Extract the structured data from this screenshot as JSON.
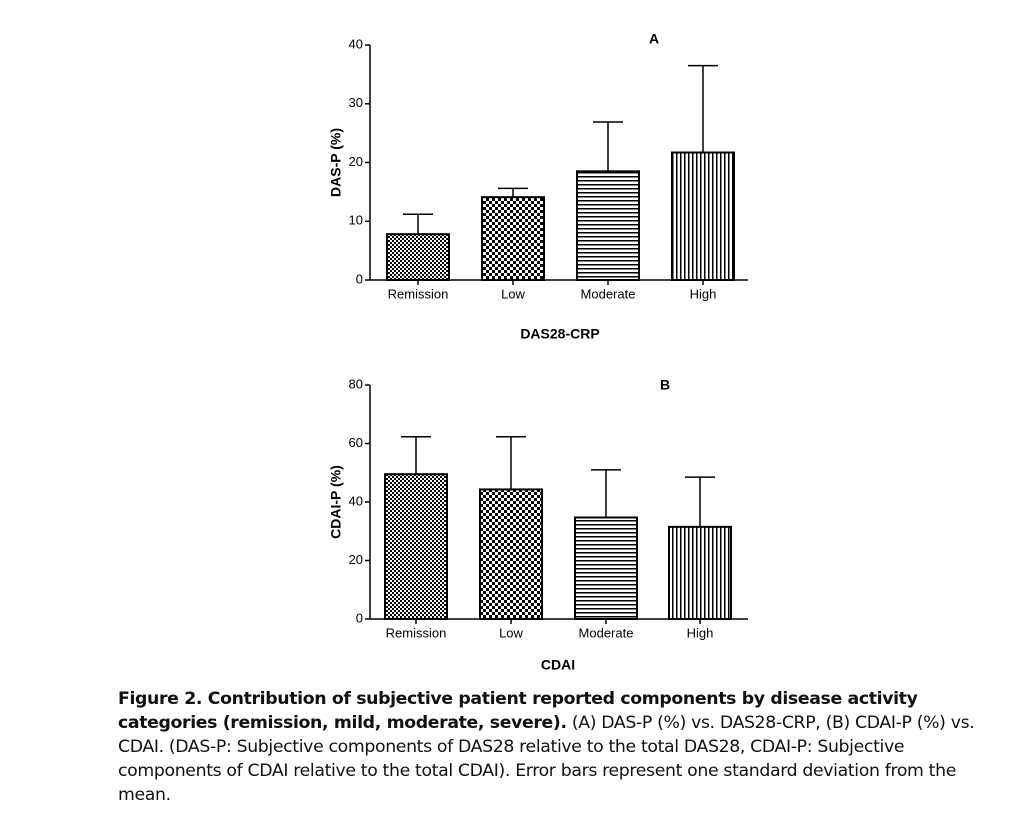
{
  "chart_data": [
    {
      "type": "bar",
      "panel": "A",
      "x_label": "DAS28-CRP",
      "y_label": "DAS-P (%)",
      "categories": [
        "Remission",
        "Low",
        "Moderate",
        "High"
      ],
      "values": [
        7.8,
        14.1,
        18.5,
        21.7
      ],
      "errors": [
        3.4,
        1.5,
        8.4,
        14.8
      ],
      "color": "#000000",
      "ylim": [
        0,
        40
      ],
      "yticks": [
        0,
        10,
        20,
        30,
        40
      ]
    },
    {
      "type": "bar",
      "panel": "B",
      "x_label": "CDAI",
      "y_label": "CDAI-P (%)",
      "categories": [
        "Remission",
        "Low",
        "Moderate",
        "High"
      ],
      "values": [
        49.5,
        44.3,
        34.7,
        31.5
      ],
      "errors": [
        12.8,
        18.0,
        16.3,
        17.0
      ],
      "color": "#000000",
      "ylim": [
        0,
        80
      ],
      "yticks": [
        0,
        20,
        40,
        60,
        80
      ]
    }
  ],
  "caption": {
    "heading": "Figure 2. Contribution of subjective patient reported components by disease activity categories (remission, mild, moderate, severe).",
    "text": "(A) DAS-P (%) vs. DAS28-CRP, (B) CDAI-P (%) vs. CDAI. (DAS-P: Subjective components of DAS28 relative to the total DAS28, CDAI-P: Subjective components of CDAI relative to the total CDAI). Error bars represent one standard deviation from the mean."
  }
}
